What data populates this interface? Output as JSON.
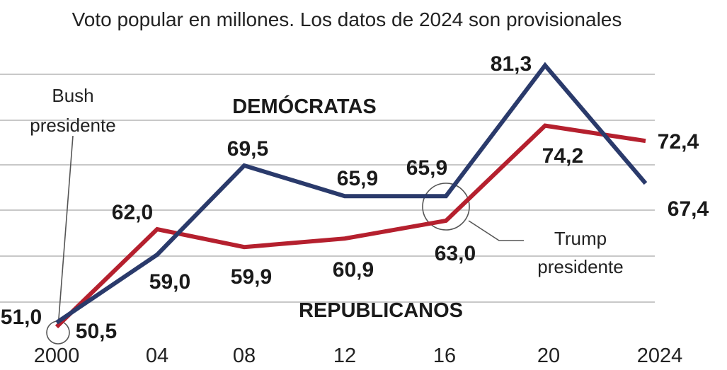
{
  "chart_data": {
    "type": "line",
    "subtitle": "Voto popular en millones. Los datos de 2024 son provisionales",
    "x": [
      "2000",
      "04",
      "08",
      "12",
      "16",
      "20",
      "2024"
    ],
    "series": [
      {
        "name": "DEMÓCRATAS",
        "color": "#2a3a6b",
        "values": [
          51.0,
          59.0,
          69.5,
          65.9,
          65.9,
          81.3,
          67.4
        ],
        "labels": [
          "51,0",
          "59,0",
          "69,5",
          "65,9",
          "65,9",
          "81,3",
          "67,4"
        ]
      },
      {
        "name": "REPUBLICANOS",
        "color": "#b5202e",
        "values": [
          50.5,
          62.0,
          59.9,
          60.9,
          63.0,
          74.2,
          72.4
        ],
        "labels": [
          "50,5",
          "62,0",
          "59,9",
          "60,9",
          "63,0",
          "74,2",
          "72,4"
        ]
      }
    ],
    "annotations": [
      {
        "lines": [
          "Bush",
          "presidente"
        ],
        "x": "2000"
      },
      {
        "lines": [
          "Trump",
          "presidente"
        ],
        "x": "16"
      }
    ],
    "ylim": [
      49,
      85
    ],
    "grid": true,
    "legend": "inline labels"
  }
}
